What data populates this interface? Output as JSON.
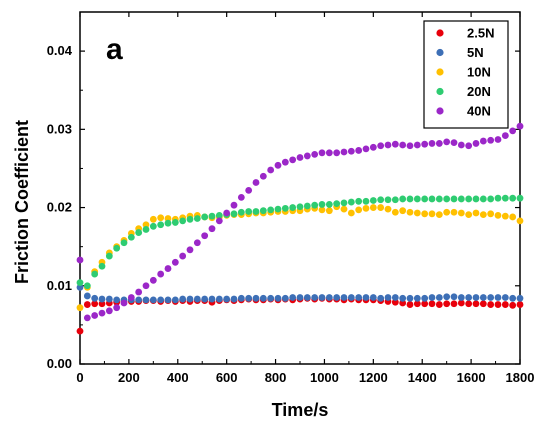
{
  "chart_data": {
    "type": "scatter",
    "panel_label": "a",
    "xlabel": "Time/s",
    "ylabel": "Friction Coefficient",
    "xlim": [
      0,
      1800
    ],
    "ylim": [
      0,
      0.045
    ],
    "xticks": [
      0,
      200,
      400,
      600,
      800,
      1000,
      1200,
      1400,
      1600,
      1800
    ],
    "xtick_labels": [
      "0",
      "200",
      "400",
      "600",
      "800",
      "1000",
      "1200",
      "1400",
      "1600",
      "1800"
    ],
    "yticks": [
      0,
      0.01,
      0.02,
      0.03,
      0.04
    ],
    "ytick_labels": [
      "0.00",
      "0.01",
      "0.02",
      "0.03",
      "0.04"
    ],
    "grid": false,
    "legend": "top-right",
    "x": [
      0,
      30,
      60,
      90,
      120,
      150,
      180,
      210,
      240,
      270,
      300,
      330,
      360,
      390,
      420,
      450,
      480,
      510,
      540,
      570,
      600,
      630,
      660,
      690,
      720,
      750,
      780,
      810,
      840,
      870,
      900,
      930,
      960,
      990,
      1020,
      1050,
      1080,
      1110,
      1140,
      1170,
      1200,
      1230,
      1260,
      1290,
      1320,
      1350,
      1380,
      1410,
      1440,
      1470,
      1500,
      1530,
      1560,
      1590,
      1620,
      1650,
      1680,
      1710,
      1740,
      1770,
      1800
    ],
    "series": [
      {
        "name": "2.5N",
        "color": "#e8000b",
        "values": [
          0.0042,
          0.0076,
          0.0077,
          0.0077,
          0.0078,
          0.0079,
          0.008,
          0.008,
          0.008,
          0.0081,
          0.0081,
          0.008,
          0.0081,
          0.008,
          0.0081,
          0.008,
          0.0081,
          0.0081,
          0.0079,
          0.0081,
          0.0082,
          0.0081,
          0.0082,
          0.0083,
          0.0082,
          0.0082,
          0.0083,
          0.0082,
          0.0083,
          0.0082,
          0.0083,
          0.0084,
          0.0083,
          0.0084,
          0.0083,
          0.0083,
          0.0082,
          0.0083,
          0.0082,
          0.0082,
          0.0082,
          0.0081,
          0.008,
          0.0079,
          0.0078,
          0.0076,
          0.0077,
          0.0077,
          0.0077,
          0.0076,
          0.0077,
          0.0077,
          0.0078,
          0.0077,
          0.0077,
          0.0077,
          0.0076,
          0.0076,
          0.0076,
          0.0075,
          0.0076
        ]
      },
      {
        "name": "5N",
        "color": "#3d6fb6",
        "values": [
          0.0098,
          0.0087,
          0.0084,
          0.0083,
          0.0083,
          0.0082,
          0.0082,
          0.0082,
          0.0082,
          0.0082,
          0.0082,
          0.0082,
          0.0082,
          0.0082,
          0.0083,
          0.0083,
          0.0083,
          0.0083,
          0.0083,
          0.0083,
          0.0083,
          0.0083,
          0.0084,
          0.0084,
          0.0084,
          0.0084,
          0.0084,
          0.0084,
          0.0084,
          0.0085,
          0.0085,
          0.0085,
          0.0085,
          0.0085,
          0.0085,
          0.0085,
          0.0085,
          0.0085,
          0.0085,
          0.0085,
          0.0085,
          0.0084,
          0.0085,
          0.0085,
          0.0084,
          0.0084,
          0.0084,
          0.0084,
          0.0085,
          0.0085,
          0.0086,
          0.0086,
          0.0085,
          0.0085,
          0.0085,
          0.0085,
          0.0085,
          0.0085,
          0.0085,
          0.0084,
          0.0084
        ]
      },
      {
        "name": "10N",
        "color": "#ffc000",
        "values": [
          0.0072,
          0.0098,
          0.0118,
          0.013,
          0.0142,
          0.015,
          0.0158,
          0.0167,
          0.0173,
          0.0178,
          0.0185,
          0.0187,
          0.0186,
          0.0185,
          0.0187,
          0.0189,
          0.019,
          0.0188,
          0.0187,
          0.0188,
          0.019,
          0.0191,
          0.0191,
          0.0192,
          0.0193,
          0.0193,
          0.0194,
          0.0195,
          0.0195,
          0.0196,
          0.0196,
          0.0198,
          0.0199,
          0.0197,
          0.0196,
          0.0201,
          0.0198,
          0.0193,
          0.0197,
          0.0199,
          0.02,
          0.02,
          0.0198,
          0.0194,
          0.0196,
          0.0194,
          0.0193,
          0.0192,
          0.0192,
          0.0191,
          0.0194,
          0.0194,
          0.0193,
          0.0191,
          0.0193,
          0.0191,
          0.0192,
          0.019,
          0.0189,
          0.0188,
          0.0183
        ]
      },
      {
        "name": "20N",
        "color": "#2ecc71",
        "values": [
          0.0104,
          0.01,
          0.0115,
          0.0125,
          0.0138,
          0.0148,
          0.0155,
          0.0162,
          0.0168,
          0.0172,
          0.0176,
          0.0178,
          0.018,
          0.0181,
          0.0183,
          0.0185,
          0.0186,
          0.0188,
          0.0189,
          0.019,
          0.0191,
          0.0192,
          0.0194,
          0.0195,
          0.0195,
          0.0196,
          0.0197,
          0.0198,
          0.0199,
          0.02,
          0.0201,
          0.0202,
          0.0203,
          0.0204,
          0.0204,
          0.0205,
          0.0206,
          0.0207,
          0.0208,
          0.0208,
          0.0209,
          0.021,
          0.021,
          0.021,
          0.0211,
          0.0211,
          0.0211,
          0.0211,
          0.0211,
          0.0211,
          0.0211,
          0.0211,
          0.0211,
          0.0211,
          0.0211,
          0.0211,
          0.0211,
          0.0212,
          0.0212,
          0.0212,
          0.0212
        ]
      },
      {
        "name": "40N",
        "color": "#9b27c8",
        "values": [
          0.0133,
          0.0059,
          0.0062,
          0.0065,
          0.0068,
          0.0072,
          0.0078,
          0.0085,
          0.0092,
          0.01,
          0.0107,
          0.0115,
          0.0122,
          0.013,
          0.0138,
          0.0146,
          0.0155,
          0.0164,
          0.0173,
          0.0183,
          0.0193,
          0.0203,
          0.0213,
          0.0222,
          0.0232,
          0.024,
          0.0248,
          0.0254,
          0.0258,
          0.0261,
          0.0264,
          0.0266,
          0.0268,
          0.027,
          0.027,
          0.027,
          0.0271,
          0.0272,
          0.0273,
          0.0275,
          0.0277,
          0.0279,
          0.028,
          0.0281,
          0.028,
          0.0279,
          0.028,
          0.0281,
          0.0282,
          0.0282,
          0.0284,
          0.0283,
          0.028,
          0.0279,
          0.0282,
          0.0285,
          0.0286,
          0.0287,
          0.0292,
          0.0298,
          0.0304
        ]
      }
    ]
  }
}
